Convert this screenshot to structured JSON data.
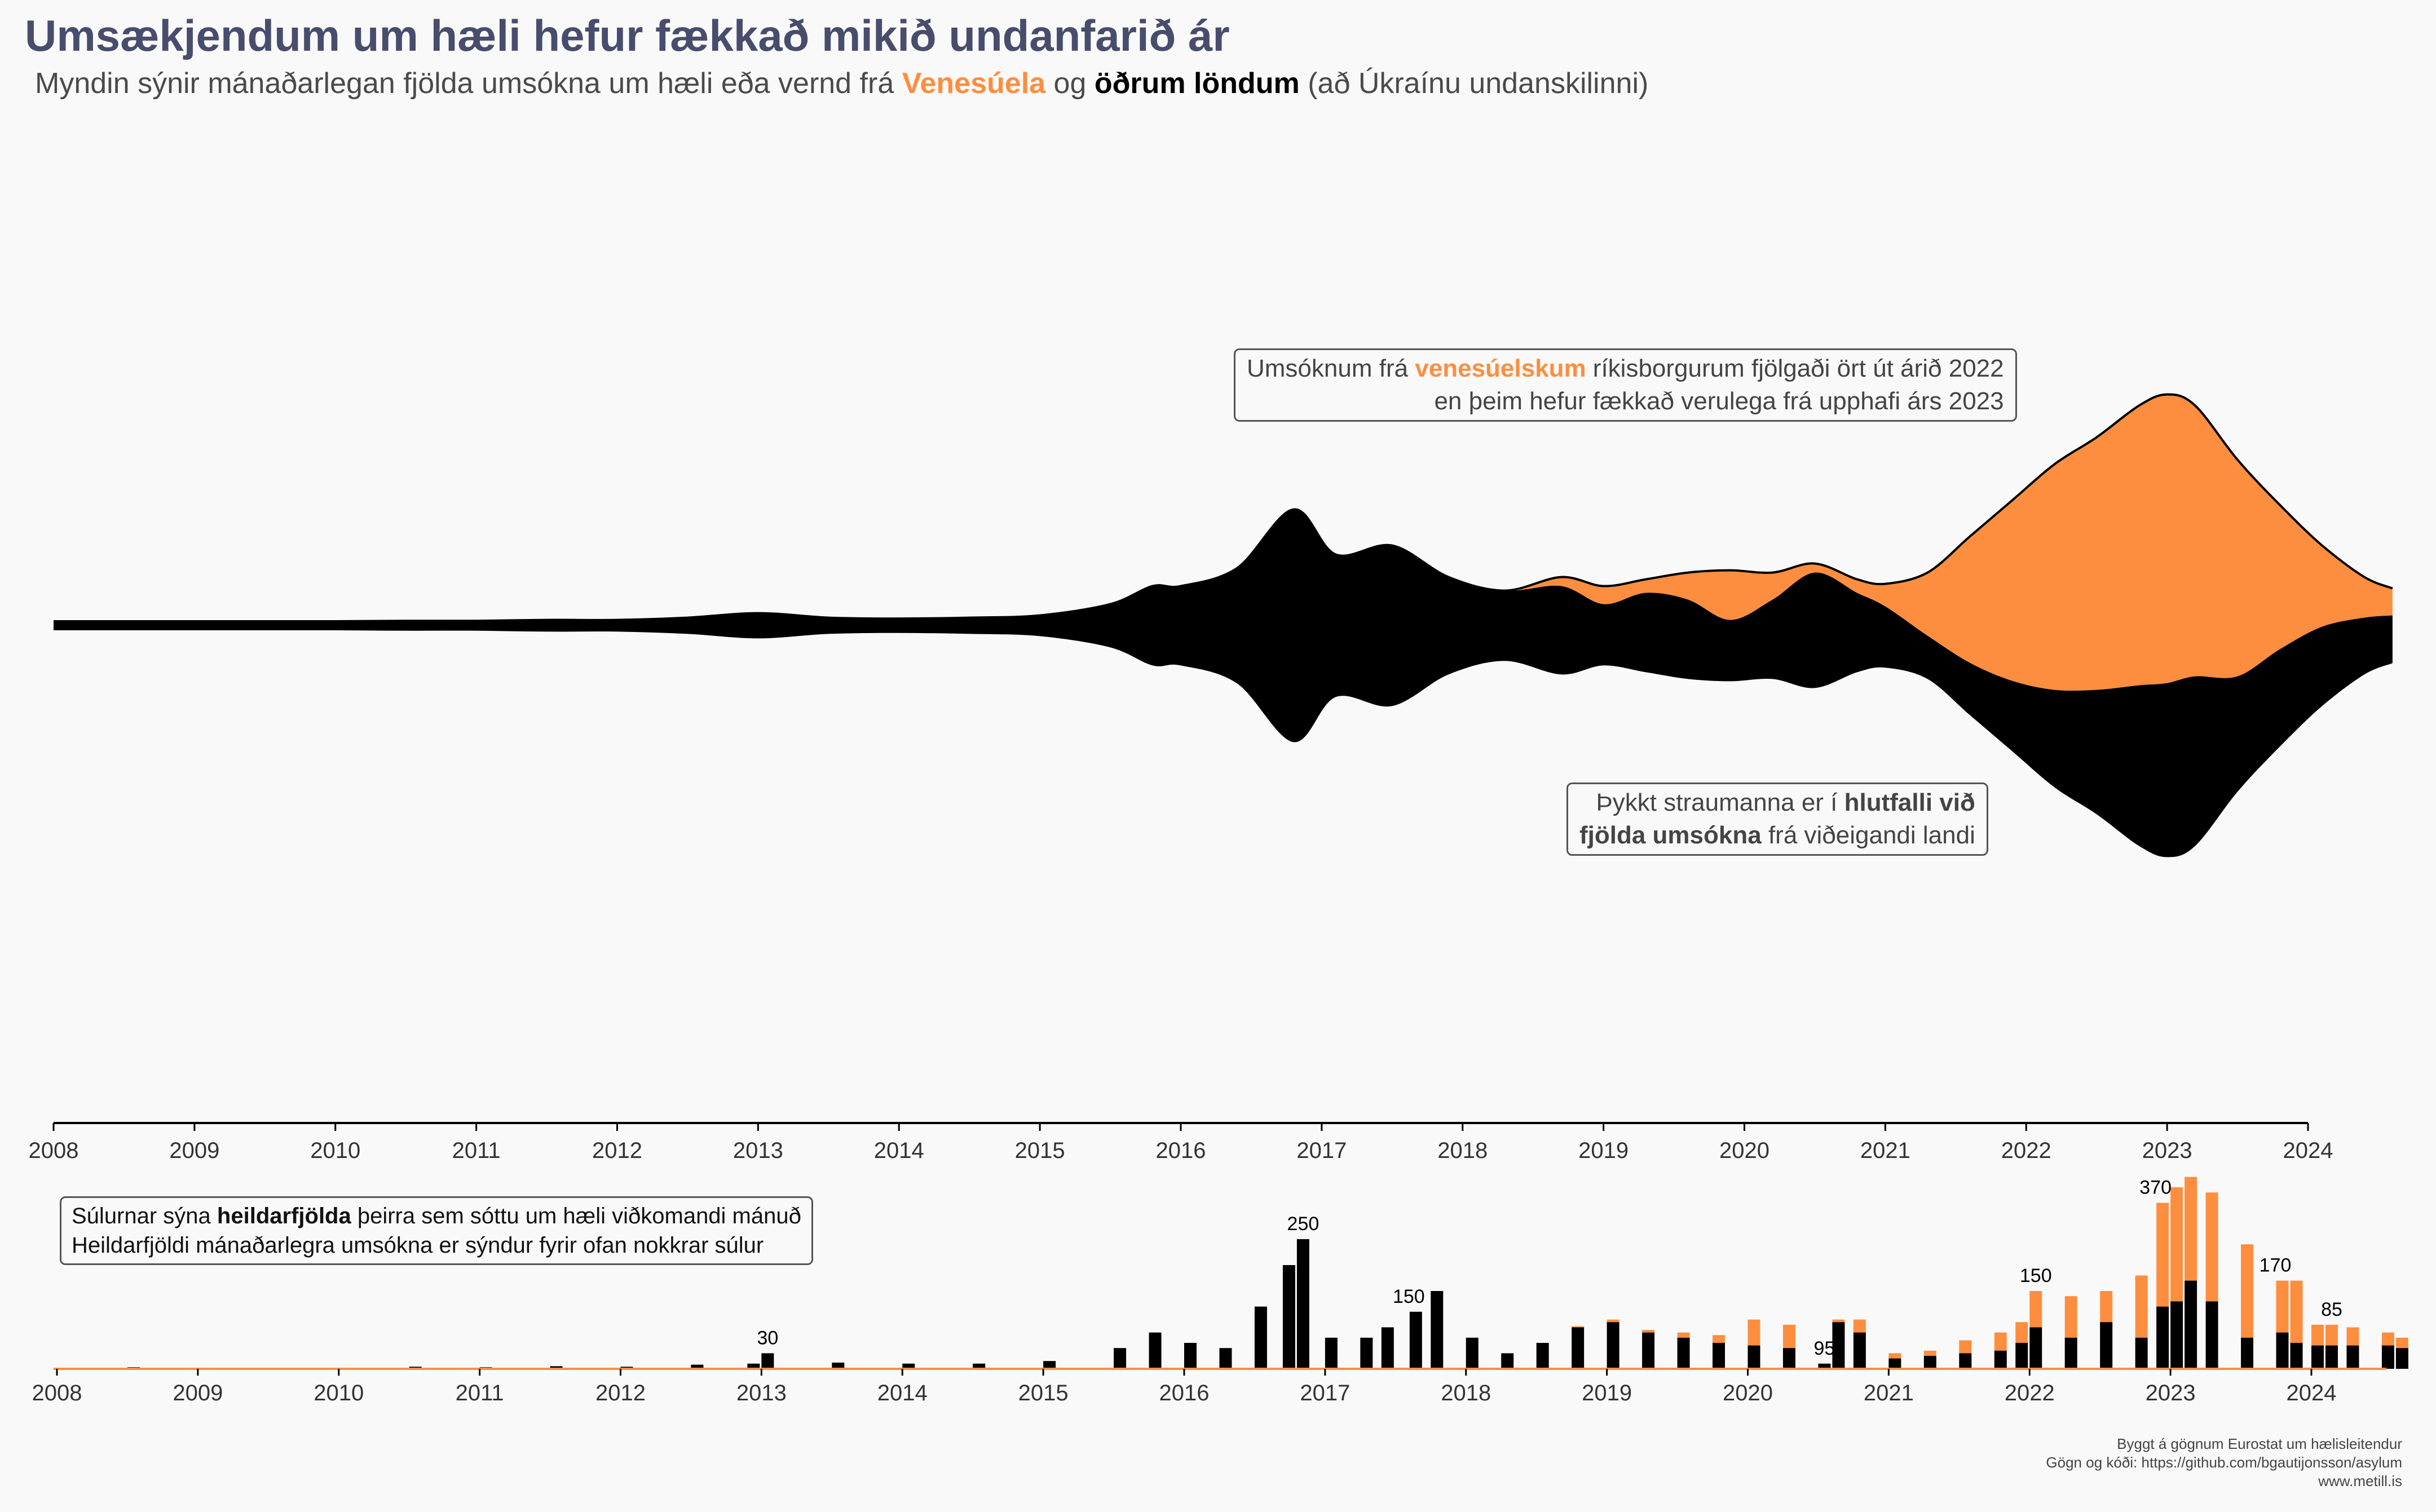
{
  "title": "Umsækjendum um hæli hefur fækkað mikið undanfarið ár",
  "subtitle": {
    "prefix": "Myndin sýnir mánaðarlegan fjölda umsókna um hæli eða vernd frá ",
    "venezuela": "Venesúela",
    "middle": " og ",
    "others": "öðrum löndum",
    "suffix": " (að Úkraínu undanskilinni)"
  },
  "annotations": {
    "venezuela_note": {
      "line1_prefix": "Umsóknum frá ",
      "line1_highlight": "venesúelskum",
      "line1_suffix": " ríkisborgurum fjölgaði ört út árið 2022",
      "line2": "en þeim hefur fækkað verulega frá upphafi árs 2023"
    },
    "thickness_note": {
      "line1_prefix": "Þykkt straumanna er í ",
      "line1_bold": "hlutfalli við",
      "line2_bold": "fjölda umsókna",
      "line2_suffix": " frá viðeigandi landi"
    },
    "bars_note": {
      "line1_prefix": "Súlurnar sýna ",
      "line1_bold": "heildarfjölda",
      "line1_suffix": " þeirra sem sóttu um hæli viðkomandi mánuð",
      "line2": "Heildarfjöldi mánaðarlegra umsókna er sýndur fyrir ofan nokkrar súlur"
    }
  },
  "caption": {
    "line1": "Byggt á gögnum Eurostat um hælisleitendur",
    "line2": "Gögn og kóði:  https://github.com/bgautijonsson/asylum",
    "line3": "www.metill.is"
  },
  "colors": {
    "venezuela": "#fd8e3f",
    "others": "#000000",
    "title": "#484d6d",
    "background": "#f9f9f9"
  },
  "chart_data": [
    {
      "type": "area",
      "subtype": "streamgraph",
      "x": [
        2008.0,
        2008.5,
        2009.0,
        2009.5,
        2010.0,
        2010.5,
        2011.0,
        2011.5,
        2012.0,
        2012.5,
        2013.0,
        2013.5,
        2014.0,
        2014.5,
        2015.0,
        2015.5,
        2015.8,
        2016.0,
        2016.4,
        2016.8,
        2017.1,
        2017.5,
        2017.9,
        2018.3,
        2018.7,
        2019.0,
        2019.3,
        2019.6,
        2019.9,
        2020.2,
        2020.5,
        2020.8,
        2021.0,
        2021.3,
        2021.6,
        2021.9,
        2022.2,
        2022.5,
        2022.8,
        2023.0,
        2023.2,
        2023.5,
        2023.8,
        2024.1,
        2024.4,
        2024.6
      ],
      "series": [
        {
          "name": "Venesúela",
          "values": [
            0,
            0,
            0,
            0,
            0,
            0,
            0,
            0,
            0,
            0,
            0,
            0,
            0,
            0,
            0,
            0,
            0,
            0,
            0,
            0,
            0,
            0,
            0,
            0,
            10,
            20,
            15,
            30,
            55,
            30,
            10,
            15,
            25,
            70,
            140,
            200,
            250,
            280,
            310,
            320,
            300,
            240,
            160,
            90,
            45,
            30
          ]
        },
        {
          "name": "öðrum löndum",
          "values": [
            2,
            2,
            2,
            2,
            2,
            3,
            3,
            5,
            5,
            10,
            20,
            10,
            8,
            10,
            15,
            40,
            80,
            80,
            120,
            250,
            150,
            170,
            100,
            70,
            90,
            60,
            80,
            80,
            60,
            80,
            120,
            80,
            60,
            40,
            50,
            70,
            100,
            130,
            170,
            185,
            180,
            120,
            100,
            80,
            55,
            45
          ]
        }
      ],
      "xlim": [
        2008,
        2024.6
      ],
      "ticks": [
        "2008",
        "2009",
        "2010",
        "2011",
        "2012",
        "2013",
        "2014",
        "2015",
        "2016",
        "2017",
        "2018",
        "2019",
        "2020",
        "2021",
        "2022",
        "2023",
        "2024"
      ]
    },
    {
      "type": "bar",
      "stacked": true,
      "x": [
        2008.0,
        2008.5,
        2009.0,
        2009.5,
        2010.0,
        2010.5,
        2011.0,
        2011.5,
        2012.0,
        2012.5,
        2012.9,
        2013.0,
        2013.5,
        2014.0,
        2014.5,
        2015.0,
        2015.5,
        2015.75,
        2016.0,
        2016.25,
        2016.5,
        2016.7,
        2016.8,
        2017.0,
        2017.25,
        2017.4,
        2017.6,
        2017.75,
        2018.0,
        2018.25,
        2018.5,
        2018.75,
        2019.0,
        2019.25,
        2019.5,
        2019.75,
        2020.0,
        2020.25,
        2020.5,
        2020.6,
        2020.75,
        2021.0,
        2021.25,
        2021.5,
        2021.75,
        2021.9,
        2022.0,
        2022.25,
        2022.5,
        2022.75,
        2022.9,
        2023.0,
        2023.1,
        2023.25,
        2023.5,
        2023.75,
        2023.85,
        2024.0,
        2024.1,
        2024.25,
        2024.5,
        2024.6
      ],
      "series": [
        {
          "name": "Venesúela",
          "values": [
            0,
            0,
            0,
            0,
            0,
            0,
            0,
            0,
            0,
            0,
            0,
            0,
            0,
            0,
            0,
            0,
            0,
            0,
            0,
            0,
            0,
            0,
            0,
            0,
            0,
            0,
            0,
            0,
            0,
            0,
            0,
            2,
            5,
            5,
            10,
            15,
            50,
            45,
            0,
            5,
            25,
            10,
            10,
            25,
            35,
            40,
            70,
            80,
            60,
            120,
            200,
            220,
            200,
            210,
            180,
            100,
            120,
            40,
            40,
            35,
            25,
            20
          ]
        },
        {
          "name": "öðrum löndum",
          "values": [
            2,
            3,
            2,
            2,
            1,
            4,
            3,
            5,
            4,
            8,
            10,
            30,
            12,
            10,
            10,
            15,
            40,
            70,
            50,
            40,
            120,
            200,
            250,
            60,
            60,
            80,
            110,
            150,
            60,
            30,
            50,
            80,
            90,
            70,
            60,
            50,
            45,
            40,
            10,
            90,
            70,
            20,
            25,
            30,
            35,
            50,
            80,
            60,
            90,
            60,
            120,
            130,
            170,
            130,
            60,
            70,
            50,
            45,
            45,
            45,
            45,
            40
          ]
        }
      ],
      "data_labels": [
        {
          "x": 2013.0,
          "label": "30"
        },
        {
          "x": 2016.8,
          "label": "250"
        },
        {
          "x": 2017.55,
          "label": "150"
        },
        {
          "x": 2020.5,
          "label": "95"
        },
        {
          "x": 2022.0,
          "label": "150"
        },
        {
          "x": 2022.85,
          "label": "370"
        },
        {
          "x": 2023.7,
          "label": "170"
        },
        {
          "x": 2024.1,
          "label": "85"
        }
      ],
      "ticks": [
        "2008",
        "2009",
        "2010",
        "2011",
        "2012",
        "2013",
        "2014",
        "2015",
        "2016",
        "2017",
        "2018",
        "2019",
        "2020",
        "2021",
        "2022",
        "2023",
        "2024"
      ]
    }
  ]
}
